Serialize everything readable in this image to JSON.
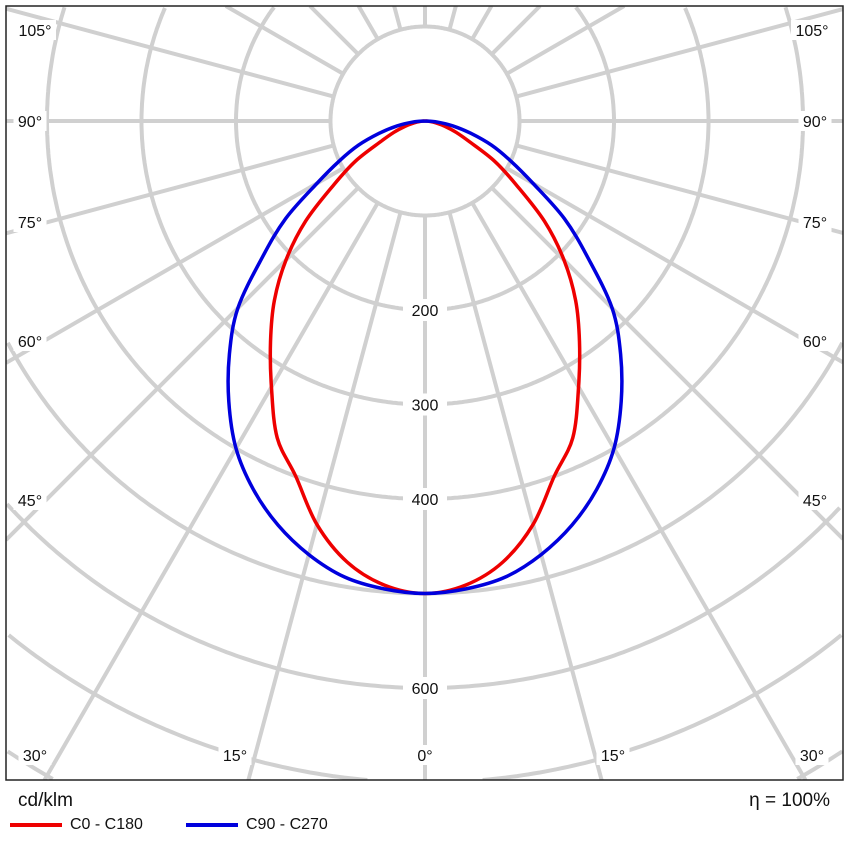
{
  "chart_data": {
    "type": "polar-line",
    "unit_label": "cd/klm",
    "efficiency_label": "η = 100%",
    "angle_labels_left": [
      "105°",
      "90°",
      "75°",
      "60°",
      "45°",
      "30°",
      "15°"
    ],
    "angle_labels_right": [
      "105°",
      "90°",
      "75°",
      "60°",
      "45°",
      "30°",
      "15°"
    ],
    "angle_label_center": "0°",
    "radial_tick_labels": [
      "200",
      "300",
      "400",
      "600"
    ],
    "radial_step": 100,
    "angle_step_deg": 15,
    "grid": true,
    "legend_placement": "bottom-left",
    "angles_deg": [
      0,
      5,
      10,
      15,
      20,
      25,
      30,
      35,
      40,
      45,
      50,
      55,
      60,
      65,
      70,
      75,
      80,
      85,
      90
    ],
    "series": [
      {
        "name": "C0 - C180",
        "color": "#ee0000",
        "values": [
          500,
          493,
          474,
          442,
          400,
          370,
          325,
          285,
          248,
          208,
          165,
          118,
          85,
          52,
          35,
          22,
          12,
          5,
          0
        ]
      },
      {
        "name": "C90 - C270",
        "color": "#0000dd",
        "values": [
          500,
          497,
          490,
          475,
          455,
          430,
          400,
          362,
          322,
          280,
          225,
          180,
          132,
          100,
          75,
          50,
          30,
          13,
          0
        ]
      }
    ]
  }
}
